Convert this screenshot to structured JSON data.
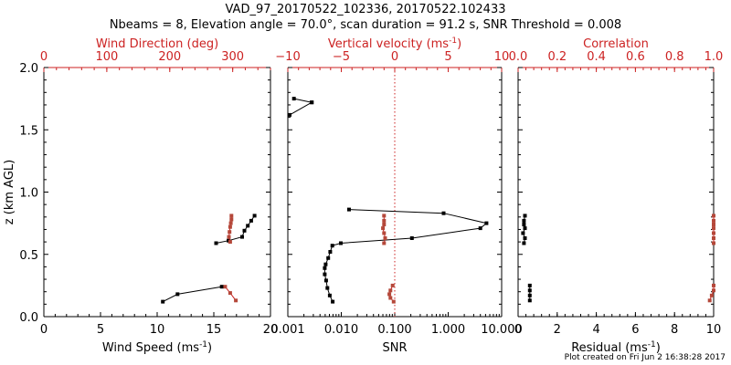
{
  "title": {
    "line1": "VAD_97_20170522_102336, 20170522.102433",
    "line2": "Nbeams = 8, Elevation angle = 70.0°, scan duration = 91.2 s, SNR Threshold = 0.008"
  },
  "footer": "Plot created on Fri Jun  2 16:38:28 2017",
  "colors": {
    "primary": "#000000",
    "secondary": "#cc2222",
    "secondary_marker": "#b5483a"
  },
  "chart_data": [
    {
      "type": "line",
      "ylabel": "z (km AGL)",
      "ylim": [
        0,
        2
      ],
      "yticks": [
        "0.0",
        "0.5",
        "1.0",
        "1.5",
        "2.0"
      ],
      "bottom_axis": {
        "label": "Wind Speed (ms",
        "sup": "-1",
        "suffix": ")",
        "xlim": [
          0,
          20
        ],
        "ticks": [
          "0",
          "5",
          "10",
          "15",
          "20"
        ],
        "scale": "linear"
      },
      "top_axis": {
        "label": "Wind Direction (deg)",
        "xlim": [
          0,
          360
        ],
        "ticks": [
          "0",
          "100",
          "200",
          "300"
        ],
        "scale": "linear"
      },
      "series": [
        {
          "axis": "bottom",
          "color": "black",
          "x": [
            10.5,
            11.8,
            15.7
          ],
          "y": [
            0.12,
            0.18,
            0.24
          ]
        },
        {
          "axis": "bottom",
          "color": "black",
          "x": [
            15.2,
            16.3,
            17.5,
            17.7,
            18.0,
            18.3,
            18.6
          ],
          "y": [
            0.59,
            0.61,
            0.64,
            0.69,
            0.73,
            0.77,
            0.81
          ]
        },
        {
          "axis": "top",
          "color": "red",
          "x": [
            288,
            296,
            305
          ],
          "y": [
            0.24,
            0.19,
            0.13
          ]
        },
        {
          "axis": "top",
          "color": "red",
          "x": [
            296,
            294,
            295,
            296,
            297,
            298,
            298
          ],
          "y": [
            0.6,
            0.64,
            0.68,
            0.72,
            0.75,
            0.78,
            0.81
          ]
        }
      ]
    },
    {
      "type": "line",
      "ylim": [
        0,
        2
      ],
      "bottom_axis": {
        "label": "SNR",
        "xlim": [
          0.001,
          10
        ],
        "scale": "log",
        "tick_values": [
          0.001,
          0.01,
          0.1,
          1,
          10
        ],
        "ticks": [
          "0.001",
          "0.010",
          "0.100",
          "1.000",
          "10.000"
        ]
      },
      "top_axis": {
        "label": "Vertical velocity (ms",
        "sup": "-1",
        "suffix": ")",
        "xlim": [
          -10,
          10
        ],
        "ticks": [
          "−10",
          "−5",
          "0",
          "5",
          "10"
        ],
        "scale": "linear"
      },
      "reference_line": {
        "axis": "top",
        "x": 0,
        "style": "dotted",
        "color": "red"
      },
      "series": [
        {
          "axis": "bottom",
          "color": "black",
          "x": [
            0.0069,
            0.0061,
            0.0055,
            0.0052,
            0.0049,
            0.0049,
            0.0051,
            0.0057,
            0.0062,
            0.0068,
            0.0098
          ],
          "y": [
            0.12,
            0.17,
            0.23,
            0.29,
            0.34,
            0.39,
            0.42,
            0.47,
            0.52,
            0.57,
            0.59
          ]
        },
        {
          "axis": "bottom",
          "color": "black",
          "x": [
            0.0098,
            0.21,
            4.0,
            5.2,
            0.82,
            0.014
          ],
          "y": [
            0.59,
            0.63,
            0.71,
            0.75,
            0.83,
            0.86
          ]
        },
        {
          "axis": "bottom",
          "color": "black",
          "x": [
            0.00108,
            0.0028
          ],
          "y": [
            1.62,
            1.72
          ]
        },
        {
          "axis": "bottom",
          "color": "black",
          "x": [
            0.0013,
            0.0028
          ],
          "y": [
            1.75,
            1.72
          ]
        },
        {
          "axis": "top",
          "color": "red",
          "x": [
            -0.1,
            -0.4,
            -0.5,
            -0.4,
            -0.2
          ],
          "y": [
            0.12,
            0.15,
            0.18,
            0.21,
            0.25
          ]
        },
        {
          "axis": "top",
          "color": "red",
          "x": [
            -1.0,
            -0.9,
            -1.0,
            -1.1,
            -1.0,
            -1.0,
            -1.0
          ],
          "y": [
            0.59,
            0.63,
            0.67,
            0.71,
            0.74,
            0.77,
            0.81
          ]
        }
      ]
    },
    {
      "type": "scatter",
      "ylim": [
        0,
        2
      ],
      "bottom_axis": {
        "label": "Residual (ms",
        "sup": "-1",
        "suffix": ")",
        "xlim": [
          0,
          10
        ],
        "ticks": [
          "0",
          "2",
          "4",
          "6",
          "8",
          "10"
        ],
        "scale": "linear"
      },
      "top_axis": {
        "label": "Correlation",
        "xlim": [
          0.0,
          1.0
        ],
        "ticks": [
          "0.0",
          "0.2",
          "0.4",
          "0.6",
          "0.8",
          "1.0"
        ],
        "scale": "linear"
      },
      "series": [
        {
          "axis": "bottom",
          "color": "black",
          "connect": true,
          "x": [
            0.6,
            0.6,
            0.6,
            0.6
          ],
          "y": [
            0.13,
            0.17,
            0.21,
            0.25
          ]
        },
        {
          "axis": "bottom",
          "color": "black",
          "connect": true,
          "x": [
            0.3,
            0.35,
            0.25,
            0.35,
            0.3,
            0.3,
            0.35
          ],
          "y": [
            0.59,
            0.63,
            0.67,
            0.71,
            0.74,
            0.77,
            0.81
          ]
        },
        {
          "axis": "top",
          "color": "red",
          "connect": true,
          "x": [
            0.98,
            0.99,
            1.0,
            1.0
          ],
          "y": [
            0.13,
            0.17,
            0.21,
            0.25
          ]
        },
        {
          "axis": "top",
          "color": "red",
          "connect": true,
          "x": [
            1.0,
            1.0,
            1.0,
            1.0,
            1.0,
            1.0,
            1.0
          ],
          "y": [
            0.59,
            0.63,
            0.67,
            0.71,
            0.74,
            0.77,
            0.81
          ]
        }
      ]
    }
  ]
}
